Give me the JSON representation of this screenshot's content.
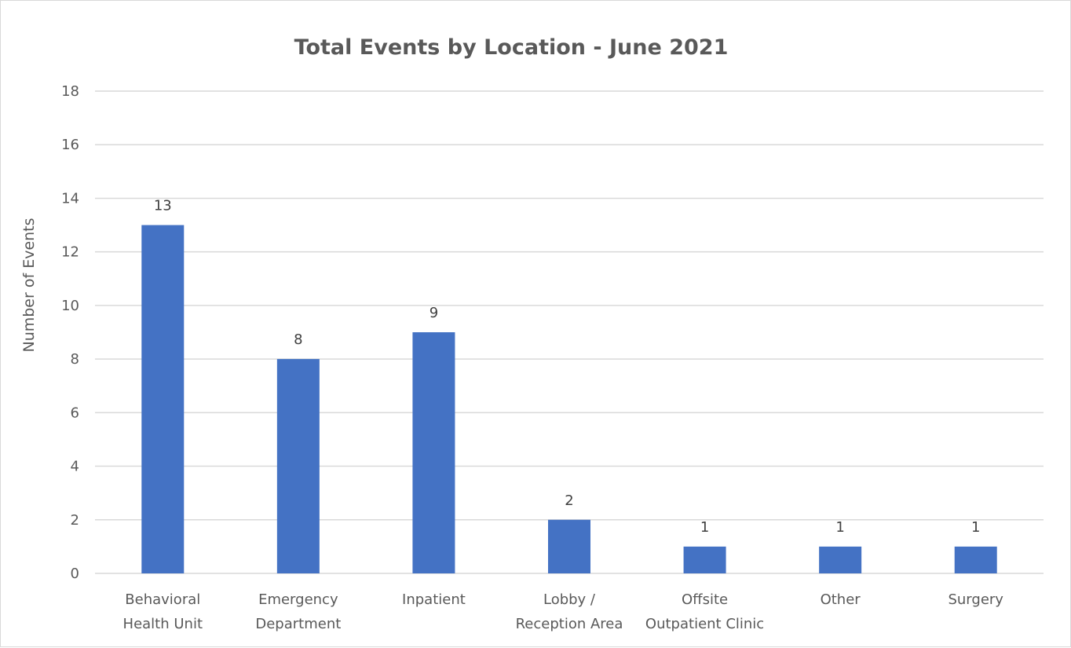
{
  "chart_data": {
    "type": "bar",
    "title": "Total Events by Location - June 2021",
    "xlabel": "",
    "ylabel": "Number of Events",
    "ylim": [
      0,
      18
    ],
    "ytick_step": 2,
    "grid": true,
    "legend": "none",
    "bar_color": "#4472c4",
    "gridline_color": "#d9d9d9",
    "categories": [
      [
        "Behavioral",
        "Health Unit"
      ],
      [
        "Emergency",
        "Department"
      ],
      [
        "Inpatient"
      ],
      [
        "Lobby /",
        "Reception Area"
      ],
      [
        "Offsite",
        "Outpatient Clinic"
      ],
      [
        "Other"
      ],
      [
        "Surgery"
      ]
    ],
    "values": [
      13,
      8,
      9,
      2,
      1,
      1,
      1
    ]
  }
}
